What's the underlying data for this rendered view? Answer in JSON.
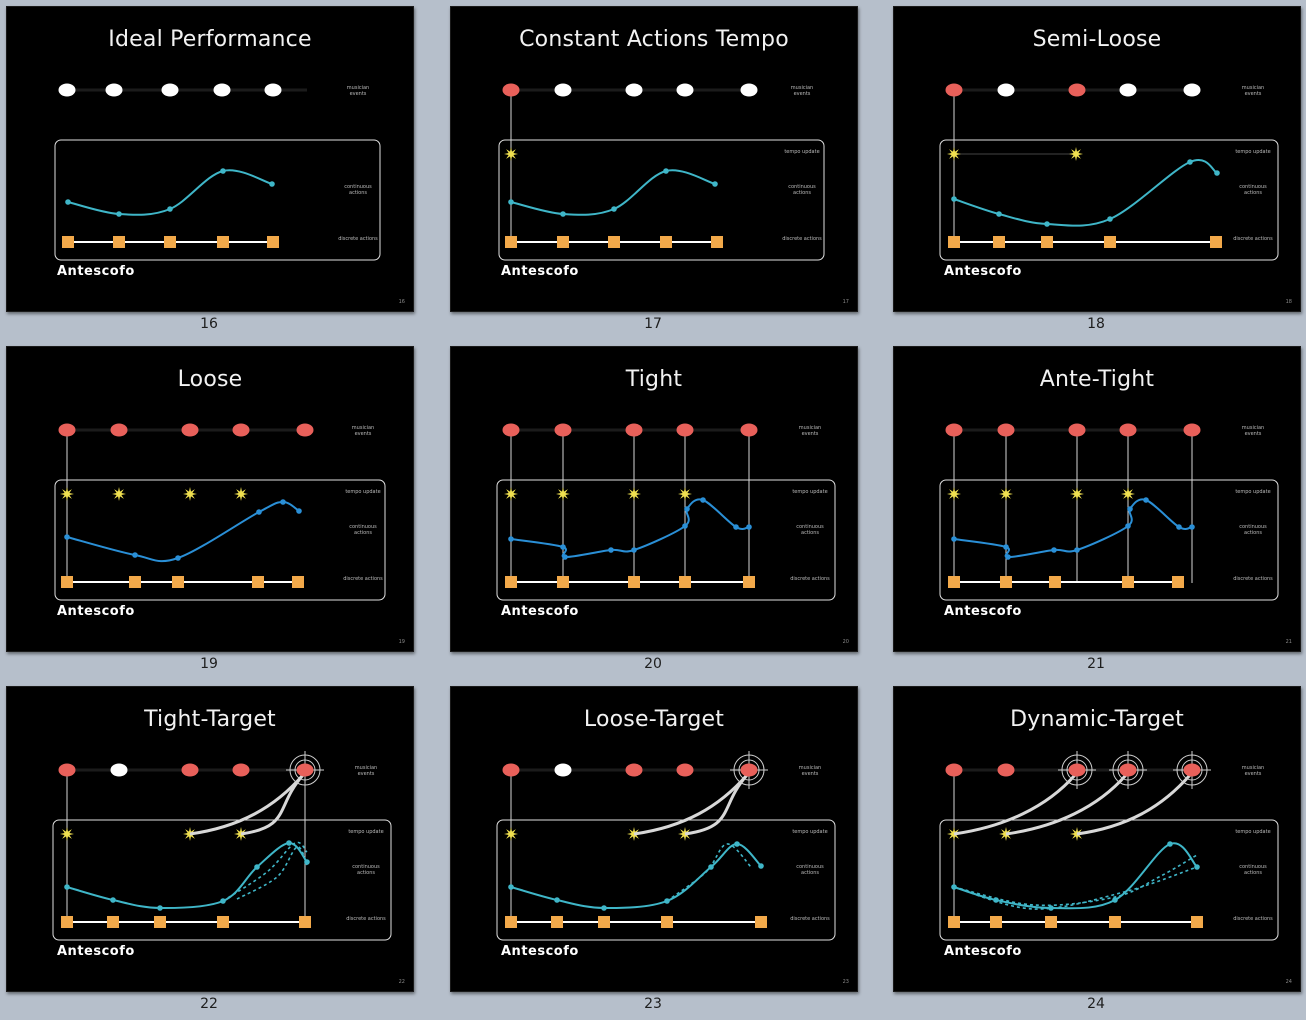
{
  "grid_labels": [
    "16",
    "17",
    "18",
    "19",
    "20",
    "21",
    "22",
    "23",
    "24"
  ],
  "logo_text": "Antescofo",
  "row_labels": {
    "musician": "musician events",
    "tempo": "tempo update",
    "continuous": "continuous actions",
    "discrete": "discrete actions"
  },
  "colors": {
    "background": "#000000",
    "page_bg": "#b6bfcb",
    "musician_red": "#e8605a",
    "musician_white": "#ffffff",
    "tempo_yellow": "#f0e050",
    "continuous_cyan": "#3fb6c8",
    "continuous_blue": "#2a8fd6",
    "discrete_orange": "#f2a94a"
  },
  "slides": [
    {
      "num": "16",
      "title": "Ideal Performance"
    },
    {
      "num": "17",
      "title": "Constant Actions Tempo"
    },
    {
      "num": "18",
      "title": "Semi-Loose"
    },
    {
      "num": "19",
      "title": "Loose"
    },
    {
      "num": "20",
      "title": "Tight"
    },
    {
      "num": "21",
      "title": "Ante-Tight"
    },
    {
      "num": "22",
      "title": "Tight-Target"
    },
    {
      "num": "23",
      "title": "Loose-Target"
    },
    {
      "num": "24",
      "title": "Dynamic-Target"
    }
  ]
}
